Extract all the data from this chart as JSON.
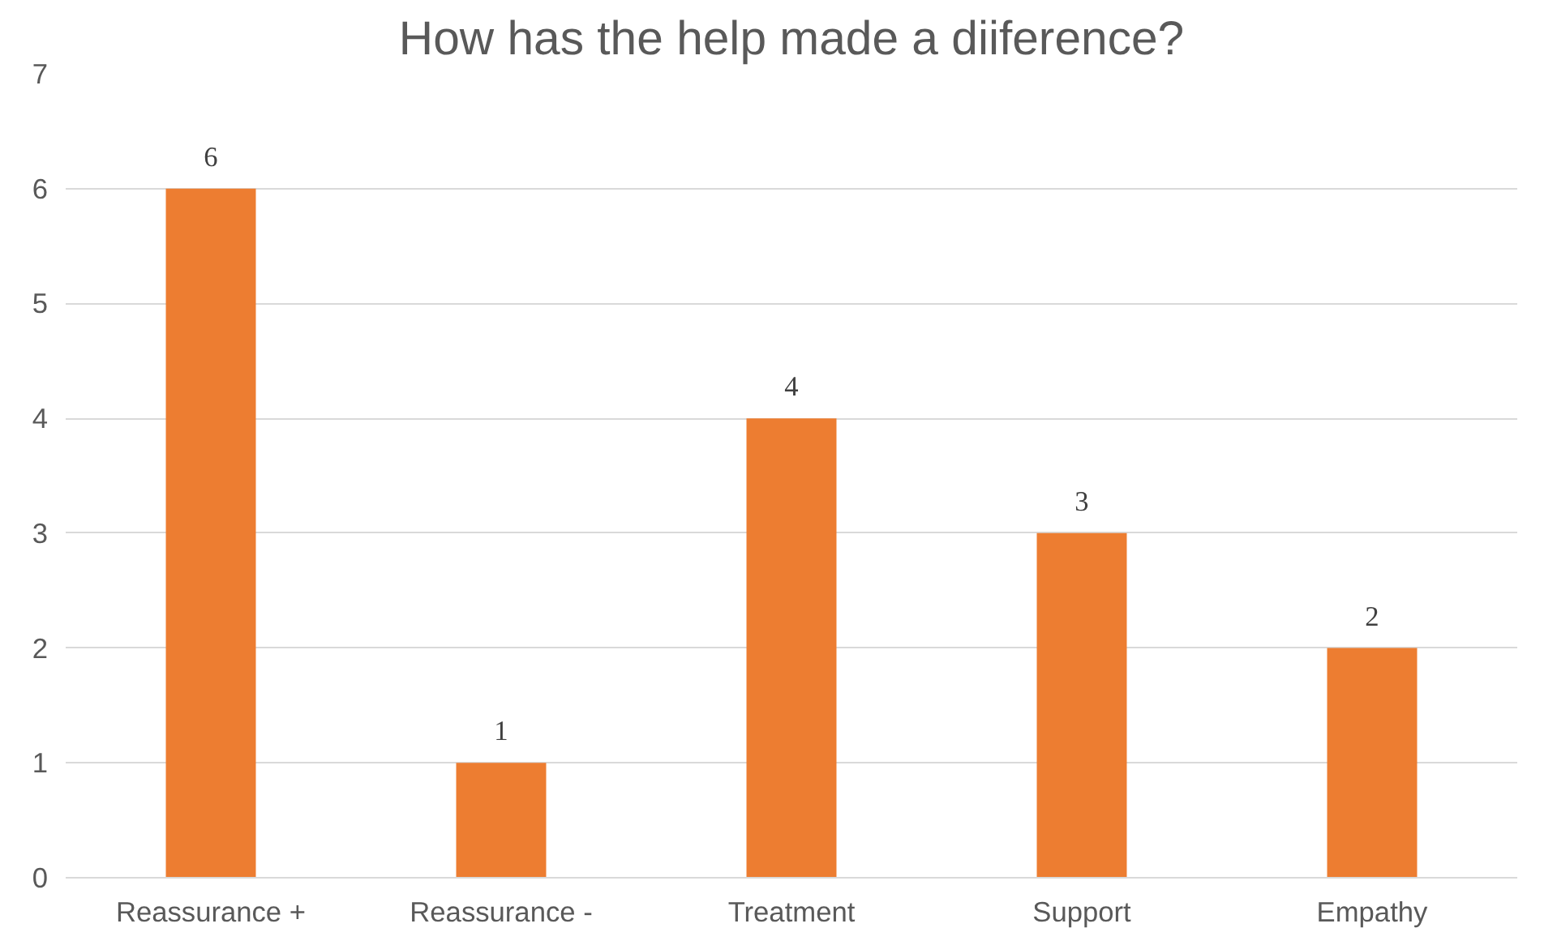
{
  "chart_data": {
    "type": "bar",
    "title": "How has the help made a diiference?",
    "categories": [
      "Reassurance +",
      "Reassurance -",
      "Treatment",
      "Support",
      "Empathy"
    ],
    "values": [
      6,
      1,
      4,
      3,
      2
    ],
    "color": "#ed7d31",
    "ylim": [
      0,
      7
    ],
    "yticks": [
      0,
      1,
      2,
      3,
      4,
      5,
      6,
      7
    ],
    "grid": "y",
    "data_labels": true
  }
}
